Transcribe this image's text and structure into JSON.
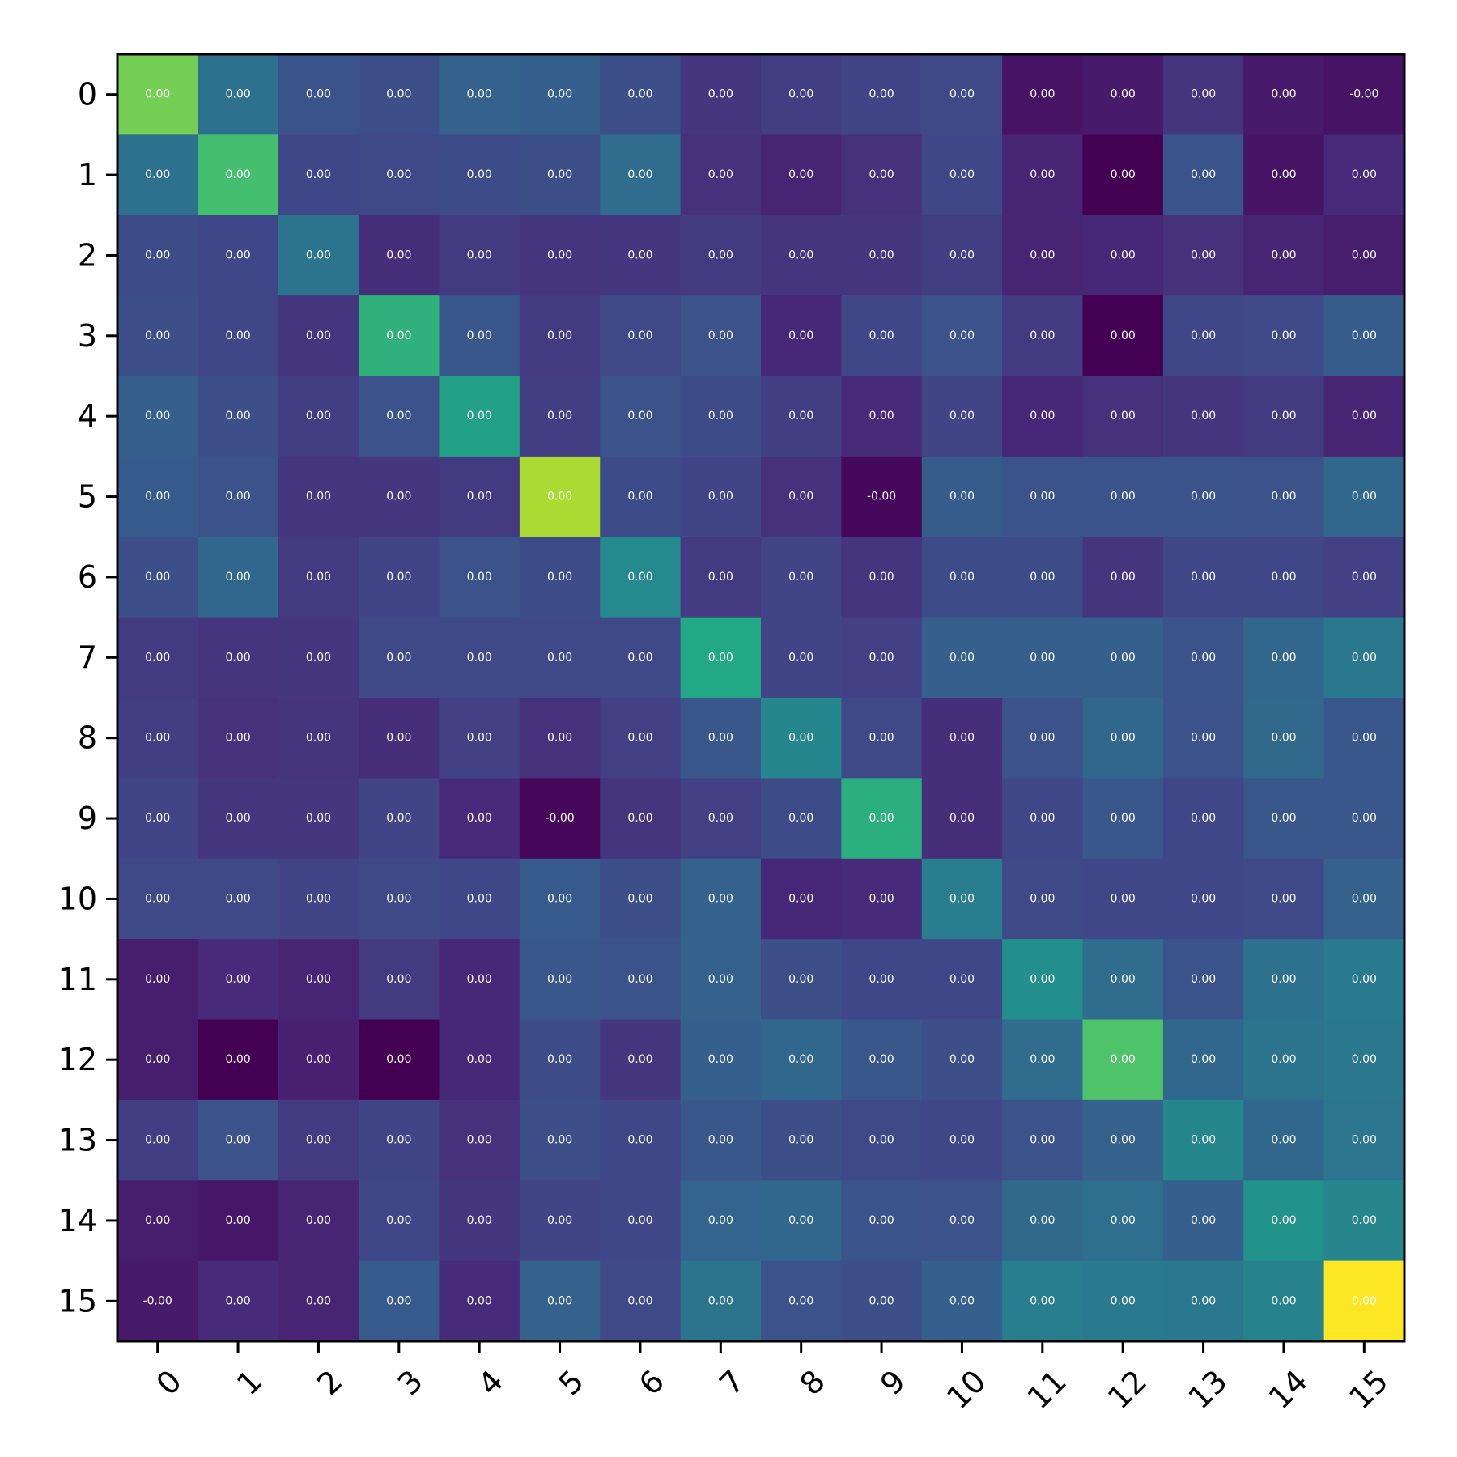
{
  "chart_data": {
    "type": "heatmap",
    "title": "",
    "xlabel": "",
    "ylabel": "",
    "grid": false,
    "legend": "none",
    "colormap": "viridis",
    "x_tick_labels": [
      "0",
      "1",
      "2",
      "3",
      "4",
      "5",
      "6",
      "7",
      "8",
      "9",
      "10",
      "11",
      "12",
      "13",
      "14",
      "15"
    ],
    "y_tick_labels": [
      "0",
      "1",
      "2",
      "3",
      "4",
      "5",
      "6",
      "7",
      "8",
      "9",
      "10",
      "11",
      "12",
      "13",
      "14",
      "15"
    ],
    "color_intensity": [
      [
        0.79,
        0.37,
        0.26,
        0.24,
        0.31,
        0.3,
        0.24,
        0.16,
        0.18,
        0.2,
        0.22,
        0.05,
        0.07,
        0.15,
        0.07,
        0.05
      ],
      [
        0.37,
        0.7,
        0.21,
        0.22,
        0.23,
        0.24,
        0.35,
        0.14,
        0.1,
        0.14,
        0.21,
        0.1,
        0.0,
        0.26,
        0.05,
        0.12
      ],
      [
        0.23,
        0.21,
        0.38,
        0.13,
        0.17,
        0.15,
        0.16,
        0.17,
        0.15,
        0.15,
        0.18,
        0.1,
        0.11,
        0.14,
        0.1,
        0.08
      ],
      [
        0.24,
        0.21,
        0.15,
        0.64,
        0.27,
        0.17,
        0.22,
        0.25,
        0.11,
        0.21,
        0.25,
        0.17,
        0.0,
        0.21,
        0.22,
        0.29
      ],
      [
        0.3,
        0.24,
        0.18,
        0.25,
        0.57,
        0.18,
        0.25,
        0.23,
        0.18,
        0.12,
        0.2,
        0.11,
        0.14,
        0.16,
        0.17,
        0.1
      ],
      [
        0.28,
        0.25,
        0.16,
        0.16,
        0.17,
        0.87,
        0.23,
        0.2,
        0.14,
        0.02,
        0.29,
        0.26,
        0.26,
        0.26,
        0.25,
        0.33
      ],
      [
        0.24,
        0.33,
        0.17,
        0.2,
        0.25,
        0.23,
        0.47,
        0.17,
        0.2,
        0.15,
        0.23,
        0.23,
        0.15,
        0.21,
        0.21,
        0.19
      ],
      [
        0.17,
        0.15,
        0.16,
        0.22,
        0.22,
        0.22,
        0.22,
        0.6,
        0.2,
        0.19,
        0.3,
        0.3,
        0.3,
        0.26,
        0.33,
        0.4
      ],
      [
        0.18,
        0.14,
        0.15,
        0.13,
        0.19,
        0.14,
        0.19,
        0.27,
        0.46,
        0.22,
        0.13,
        0.25,
        0.33,
        0.25,
        0.34,
        0.27
      ],
      [
        0.2,
        0.16,
        0.16,
        0.2,
        0.12,
        0.02,
        0.15,
        0.19,
        0.23,
        0.63,
        0.13,
        0.21,
        0.27,
        0.21,
        0.27,
        0.27
      ],
      [
        0.22,
        0.22,
        0.2,
        0.22,
        0.21,
        0.28,
        0.24,
        0.31,
        0.11,
        0.12,
        0.42,
        0.22,
        0.21,
        0.21,
        0.22,
        0.31
      ],
      [
        0.08,
        0.12,
        0.1,
        0.17,
        0.11,
        0.27,
        0.26,
        0.31,
        0.24,
        0.21,
        0.21,
        0.49,
        0.35,
        0.26,
        0.37,
        0.41
      ],
      [
        0.08,
        0.0,
        0.09,
        0.0,
        0.11,
        0.23,
        0.16,
        0.3,
        0.33,
        0.27,
        0.24,
        0.35,
        0.72,
        0.33,
        0.38,
        0.4
      ],
      [
        0.18,
        0.25,
        0.17,
        0.2,
        0.14,
        0.24,
        0.21,
        0.27,
        0.24,
        0.22,
        0.21,
        0.25,
        0.31,
        0.46,
        0.33,
        0.39
      ],
      [
        0.08,
        0.06,
        0.1,
        0.21,
        0.16,
        0.2,
        0.21,
        0.32,
        0.33,
        0.26,
        0.25,
        0.34,
        0.36,
        0.3,
        0.51,
        0.45
      ],
      [
        0.07,
        0.12,
        0.1,
        0.28,
        0.12,
        0.31,
        0.22,
        0.38,
        0.25,
        0.24,
        0.3,
        0.42,
        0.41,
        0.4,
        0.44,
        1.0
      ]
    ],
    "cell_labels": [
      [
        "0.00",
        "0.00",
        "0.00",
        "0.00",
        "0.00",
        "0.00",
        "0.00",
        "0.00",
        "0.00",
        "0.00",
        "0.00",
        "0.00",
        "0.00",
        "0.00",
        "0.00",
        "-0.00"
      ],
      [
        "0.00",
        "0.00",
        "0.00",
        "0.00",
        "0.00",
        "0.00",
        "0.00",
        "0.00",
        "0.00",
        "0.00",
        "0.00",
        "0.00",
        "0.00",
        "0.00",
        "0.00",
        "0.00"
      ],
      [
        "0.00",
        "0.00",
        "0.00",
        "0.00",
        "0.00",
        "0.00",
        "0.00",
        "0.00",
        "0.00",
        "0.00",
        "0.00",
        "0.00",
        "0.00",
        "0.00",
        "0.00",
        "0.00"
      ],
      [
        "0.00",
        "0.00",
        "0.00",
        "0.00",
        "0.00",
        "0.00",
        "0.00",
        "0.00",
        "0.00",
        "0.00",
        "0.00",
        "0.00",
        "0.00",
        "0.00",
        "0.00",
        "0.00"
      ],
      [
        "0.00",
        "0.00",
        "0.00",
        "0.00",
        "0.00",
        "0.00",
        "0.00",
        "0.00",
        "0.00",
        "0.00",
        "0.00",
        "0.00",
        "0.00",
        "0.00",
        "0.00",
        "0.00"
      ],
      [
        "0.00",
        "0.00",
        "0.00",
        "0.00",
        "0.00",
        "0.00",
        "0.00",
        "0.00",
        "0.00",
        "-0.00",
        "0.00",
        "0.00",
        "0.00",
        "0.00",
        "0.00",
        "0.00"
      ],
      [
        "0.00",
        "0.00",
        "0.00",
        "0.00",
        "0.00",
        "0.00",
        "0.00",
        "0.00",
        "0.00",
        "0.00",
        "0.00",
        "0.00",
        "0.00",
        "0.00",
        "0.00",
        "0.00"
      ],
      [
        "0.00",
        "0.00",
        "0.00",
        "0.00",
        "0.00",
        "0.00",
        "0.00",
        "0.00",
        "0.00",
        "0.00",
        "0.00",
        "0.00",
        "0.00",
        "0.00",
        "0.00",
        "0.00"
      ],
      [
        "0.00",
        "0.00",
        "0.00",
        "0.00",
        "0.00",
        "0.00",
        "0.00",
        "0.00",
        "0.00",
        "0.00",
        "0.00",
        "0.00",
        "0.00",
        "0.00",
        "0.00",
        "0.00"
      ],
      [
        "0.00",
        "0.00",
        "0.00",
        "0.00",
        "0.00",
        "-0.00",
        "0.00",
        "0.00",
        "0.00",
        "0.00",
        "0.00",
        "0.00",
        "0.00",
        "0.00",
        "0.00",
        "0.00"
      ],
      [
        "0.00",
        "0.00",
        "0.00",
        "0.00",
        "0.00",
        "0.00",
        "0.00",
        "0.00",
        "0.00",
        "0.00",
        "0.00",
        "0.00",
        "0.00",
        "0.00",
        "0.00",
        "0.00"
      ],
      [
        "0.00",
        "0.00",
        "0.00",
        "0.00",
        "0.00",
        "0.00",
        "0.00",
        "0.00",
        "0.00",
        "0.00",
        "0.00",
        "0.00",
        "0.00",
        "0.00",
        "0.00",
        "0.00"
      ],
      [
        "0.00",
        "0.00",
        "0.00",
        "0.00",
        "0.00",
        "0.00",
        "0.00",
        "0.00",
        "0.00",
        "0.00",
        "0.00",
        "0.00",
        "0.00",
        "0.00",
        "0.00",
        "0.00"
      ],
      [
        "0.00",
        "0.00",
        "0.00",
        "0.00",
        "0.00",
        "0.00",
        "0.00",
        "0.00",
        "0.00",
        "0.00",
        "0.00",
        "0.00",
        "0.00",
        "0.00",
        "0.00",
        "0.00"
      ],
      [
        "0.00",
        "0.00",
        "0.00",
        "0.00",
        "0.00",
        "0.00",
        "0.00",
        "0.00",
        "0.00",
        "0.00",
        "0.00",
        "0.00",
        "0.00",
        "0.00",
        "0.00",
        "0.00"
      ],
      [
        "-0.00",
        "0.00",
        "0.00",
        "0.00",
        "0.00",
        "0.00",
        "0.00",
        "0.00",
        "0.00",
        "0.00",
        "0.00",
        "0.00",
        "0.00",
        "0.00",
        "0.00",
        "0.00"
      ]
    ]
  }
}
